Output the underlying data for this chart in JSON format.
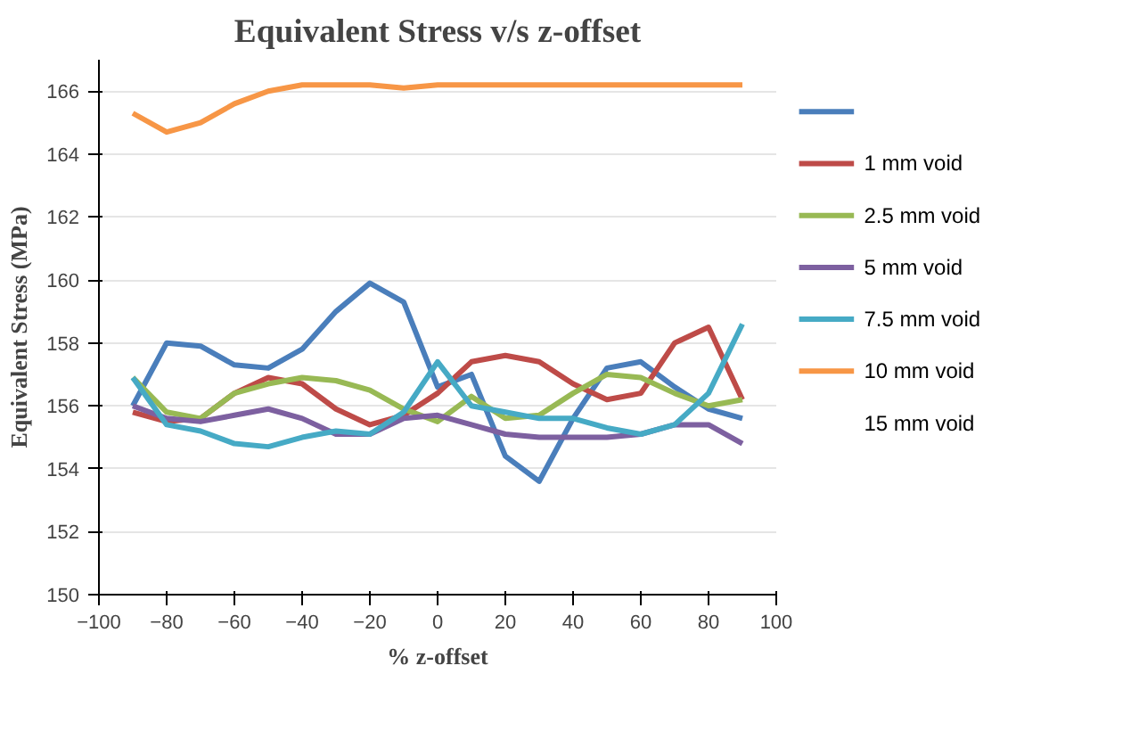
{
  "chart_data": {
    "type": "line",
    "title": "Equivalent Stress v/s z-offset",
    "xlabel": "% z-offset",
    "ylabel": "Equivalent Stress (MPa)",
    "x": [
      -90,
      -80,
      -70,
      -60,
      -50,
      -40,
      -30,
      -20,
      -10,
      0,
      10,
      20,
      30,
      40,
      50,
      60,
      70,
      80,
      90
    ],
    "series": [
      {
        "color": "#4a7ebb",
        "values": [
          156.0,
          158.0,
          157.9,
          157.3,
          157.2,
          157.8,
          159.0,
          159.9,
          159.3,
          156.6,
          157.0,
          154.4,
          153.6,
          155.6,
          157.2,
          157.4,
          156.6,
          155.9,
          155.6
        ]
      },
      {
        "name": "1 mm void",
        "color": "#be4b48",
        "values": [
          155.8,
          155.5,
          155.6,
          156.4,
          156.9,
          156.7,
          155.9,
          155.4,
          155.7,
          156.4,
          157.4,
          157.6,
          157.4,
          156.7,
          156.2,
          156.4,
          158.0,
          158.5,
          156.2
        ]
      },
      {
        "name": "2.5 mm void",
        "color": "#98b954",
        "values": [
          156.9,
          155.8,
          155.6,
          156.4,
          156.7,
          156.9,
          156.8,
          156.5,
          155.9,
          155.5,
          156.3,
          155.6,
          155.7,
          156.4,
          157.0,
          156.9,
          156.4,
          156.0,
          156.2
        ]
      },
      {
        "name": "5 mm void",
        "color": "#7d60a0",
        "values": [
          156.0,
          155.6,
          155.5,
          155.7,
          155.9,
          155.6,
          155.1,
          155.1,
          155.6,
          155.7,
          155.4,
          155.1,
          155.0,
          155.0,
          155.0,
          155.1,
          155.4,
          155.4,
          154.8
        ]
      },
      {
        "name": "7.5 mm void",
        "color": "#46aac5",
        "values": [
          156.9,
          155.4,
          155.2,
          154.8,
          154.7,
          155.0,
          155.2,
          155.1,
          155.8,
          157.4,
          156.0,
          155.8,
          155.6,
          155.6,
          155.3,
          155.1,
          155.4,
          156.4,
          158.6
        ]
      },
      {
        "name": "10 mm void",
        "color": "#f79646",
        "values": [
          165.3,
          164.7,
          165.0,
          165.6,
          166.0,
          166.2,
          166.2,
          166.2,
          166.1,
          166.2,
          166.2,
          166.2,
          166.2,
          166.2,
          166.2,
          166.2,
          166.2,
          166.2,
          166.2
        ]
      }
    ],
    "annotations": [
      "15 mm void"
    ],
    "xlim": [
      -100,
      100
    ],
    "xticks": [
      -100,
      -80,
      -60,
      -40,
      -20,
      0,
      20,
      40,
      60,
      80,
      100
    ],
    "ylim": [
      150,
      167
    ],
    "yticks": [
      150,
      152,
      154,
      156,
      158,
      160,
      162,
      164,
      166
    ],
    "grid": "y",
    "legend": "right",
    "marker": "none",
    "line_style": "solid"
  }
}
